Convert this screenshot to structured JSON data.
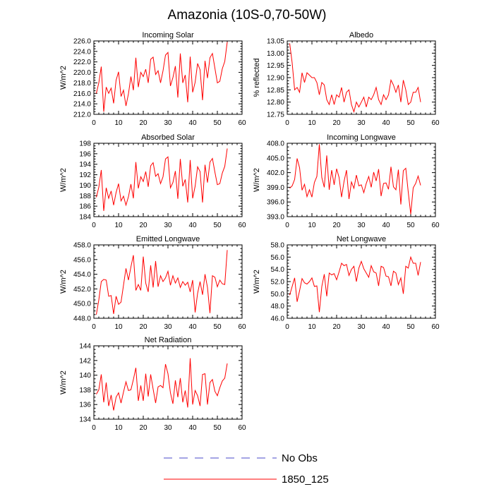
{
  "title": "Amazonia (10S-0,70-50W)",
  "legend": [
    {
      "label": "No Obs",
      "color": "#4a4ac8",
      "style": "dashed"
    },
    {
      "label": "1850_125",
      "color": "#ff0000",
      "style": "solid"
    }
  ],
  "chart_data": [
    {
      "type": "line",
      "title": "Incoming Solar",
      "ylabel": "W/m^2",
      "xlim": [
        0,
        60
      ],
      "xticks": [
        0,
        10,
        20,
        30,
        40,
        50,
        60
      ],
      "ylim": [
        212,
        226
      ],
      "yticks": [
        212,
        214,
        216,
        218,
        220,
        222,
        224,
        226
      ],
      "ydecimals": 1,
      "series": [
        {
          "name": "1850_125",
          "color": "#ff0000",
          "x": [
            1,
            2,
            3,
            4,
            5,
            6,
            7,
            8,
            9,
            10,
            11,
            12,
            13,
            14,
            15,
            16,
            17,
            18,
            19,
            20,
            21,
            22,
            23,
            24,
            25,
            26,
            27,
            28,
            29,
            30,
            31,
            32,
            33,
            34,
            35,
            36,
            37,
            38,
            39,
            40,
            41,
            42,
            43,
            44,
            45,
            46,
            47,
            48,
            49,
            50,
            51,
            52,
            53,
            54
          ],
          "values": [
            216.0,
            218.0,
            221.1,
            212.5,
            217.2,
            216.0,
            217.0,
            214.1,
            218.5,
            220.1,
            215.4,
            216.6,
            213.6,
            215.9,
            219.2,
            216.6,
            222.8,
            217.2,
            220.0,
            219.2,
            220.6,
            218.0,
            222.5,
            222.9,
            219.6,
            220.3,
            218.0,
            220.3,
            223.3,
            223.8,
            217.4,
            219.0,
            221.2,
            215.2,
            223.6,
            218.0,
            219.5,
            214.3,
            223.0,
            216.2,
            218.1,
            221.7,
            220.5,
            214.7,
            222.2,
            218.9,
            222.8,
            223.6,
            220.8,
            218.0,
            218.3,
            220.7,
            222.1,
            225.8
          ]
        }
      ]
    },
    {
      "type": "line",
      "title": "Albedo",
      "ylabel": "% reflected",
      "xlim": [
        0,
        60
      ],
      "xticks": [
        0,
        10,
        20,
        30,
        40,
        50,
        60
      ],
      "ylim": [
        12.75,
        13.05
      ],
      "yticks": [
        12.75,
        12.8,
        12.85,
        12.9,
        12.95,
        13.0,
        13.05
      ],
      "ydecimals": 2,
      "series": [
        {
          "name": "1850_125",
          "color": "#ff0000",
          "x": [
            1,
            2,
            3,
            4,
            5,
            6,
            7,
            8,
            9,
            10,
            11,
            12,
            13,
            14,
            15,
            16,
            17,
            18,
            19,
            20,
            21,
            22,
            23,
            24,
            25,
            26,
            27,
            28,
            29,
            30,
            31,
            32,
            33,
            34,
            35,
            36,
            37,
            38,
            39,
            40,
            41,
            42,
            43,
            44,
            45,
            46,
            47,
            48,
            49,
            50,
            51,
            52,
            53,
            54
          ],
          "values": [
            13.04,
            12.96,
            12.85,
            12.86,
            12.84,
            12.92,
            12.88,
            12.92,
            12.91,
            12.9,
            12.9,
            12.88,
            12.83,
            12.88,
            12.87,
            12.81,
            12.79,
            12.83,
            12.79,
            12.83,
            12.82,
            12.86,
            12.8,
            12.84,
            12.85,
            12.79,
            12.76,
            12.8,
            12.78,
            12.8,
            12.82,
            12.78,
            12.82,
            12.81,
            12.83,
            12.86,
            12.81,
            12.79,
            12.83,
            12.81,
            12.83,
            12.89,
            12.87,
            12.84,
            12.87,
            12.8,
            12.89,
            12.85,
            12.79,
            12.8,
            12.84,
            12.84,
            12.86,
            12.8
          ]
        }
      ]
    },
    {
      "type": "line",
      "title": "Absorbed Solar",
      "ylabel": "W/m^2",
      "xlim": [
        0,
        60
      ],
      "xticks": [
        0,
        10,
        20,
        30,
        40,
        50,
        60
      ],
      "ylim": [
        184,
        198
      ],
      "yticks": [
        184,
        186,
        188,
        190,
        192,
        194,
        196,
        198
      ],
      "ydecimals": 0,
      "series": [
        {
          "name": "1850_125",
          "color": "#ff0000",
          "x": [
            1,
            2,
            3,
            4,
            5,
            6,
            7,
            8,
            9,
            10,
            11,
            12,
            13,
            14,
            15,
            16,
            17,
            18,
            19,
            20,
            21,
            22,
            23,
            24,
            25,
            26,
            27,
            28,
            29,
            30,
            31,
            32,
            33,
            34,
            35,
            36,
            37,
            38,
            39,
            40,
            41,
            42,
            43,
            44,
            45,
            46,
            47,
            48,
            49,
            50,
            51,
            52,
            53,
            54
          ],
          "values": [
            187.7,
            189.6,
            192.9,
            185.1,
            189.5,
            187.5,
            188.9,
            186.2,
            188.6,
            190.3,
            187.0,
            187.9,
            186.2,
            187.8,
            190.2,
            187.5,
            194.4,
            189.4,
            191.6,
            190.7,
            192.6,
            189.7,
            193.7,
            194.3,
            191.7,
            192.2,
            190.3,
            191.6,
            195.0,
            195.4,
            189.5,
            190.5,
            192.7,
            187.4,
            195.0,
            189.8,
            191.1,
            186.7,
            194.8,
            187.5,
            189.8,
            193.5,
            192.6,
            186.7,
            193.9,
            190.5,
            194.4,
            195.1,
            192.5,
            190.1,
            190.3,
            192.3,
            193.6,
            197.0
          ]
        }
      ]
    },
    {
      "type": "line",
      "title": "Incoming Longwave",
      "ylabel": "W/m^2",
      "xlim": [
        0,
        60
      ],
      "xticks": [
        0,
        10,
        20,
        30,
        40,
        50,
        60
      ],
      "ylim": [
        393,
        408
      ],
      "yticks": [
        393,
        396,
        399,
        402,
        405,
        408
      ],
      "ydecimals": 1,
      "series": [
        {
          "name": "1850_125",
          "color": "#ff0000",
          "x": [
            1,
            2,
            3,
            4,
            5,
            6,
            7,
            8,
            9,
            10,
            11,
            12,
            13,
            14,
            15,
            16,
            17,
            18,
            19,
            20,
            21,
            22,
            23,
            24,
            25,
            26,
            27,
            28,
            29,
            30,
            31,
            32,
            33,
            34,
            35,
            36,
            37,
            38,
            39,
            40,
            41,
            42,
            43,
            44,
            45,
            46,
            47,
            48,
            49,
            50,
            51,
            52,
            53,
            54
          ],
          "values": [
            398.8,
            399.3,
            400.6,
            404.9,
            403.0,
            398.4,
            399.6,
            397.1,
            398.5,
            397.0,
            400.0,
            401.2,
            407.8,
            401.0,
            399.0,
            405.5,
            398.5,
            402.5,
            399.5,
            402.8,
            401.0,
            397.0,
            400.2,
            402.5,
            396.6,
            400.1,
            398.8,
            401.5,
            399.3,
            399.5,
            397.9,
            399.8,
            401.2,
            399.0,
            402.1,
            400.3,
            402.7,
            397.2,
            399.8,
            399.9,
            398.6,
            403.2,
            399.1,
            398.5,
            402.6,
            395.5,
            402.4,
            402.9,
            398.0,
            393.5,
            398.9,
            399.8,
            401.3,
            399.4
          ]
        }
      ]
    },
    {
      "type": "line",
      "title": "Emitted Longwave",
      "ylabel": "W/m^2",
      "xlim": [
        0,
        60
      ],
      "xticks": [
        0,
        10,
        20,
        30,
        40,
        50,
        60
      ],
      "ylim": [
        448,
        458
      ],
      "yticks": [
        448,
        450,
        452,
        454,
        456,
        458
      ],
      "ydecimals": 1,
      "series": [
        {
          "name": "1850_125",
          "color": "#ff0000",
          "x": [
            1,
            2,
            3,
            4,
            5,
            6,
            7,
            8,
            9,
            10,
            11,
            12,
            13,
            14,
            15,
            16,
            17,
            18,
            19,
            20,
            21,
            22,
            23,
            24,
            25,
            26,
            27,
            28,
            29,
            30,
            31,
            32,
            33,
            34,
            35,
            36,
            37,
            38,
            39,
            40,
            41,
            42,
            43,
            44,
            45,
            46,
            47,
            48,
            49,
            50,
            51,
            52,
            53,
            54
          ],
          "values": [
            448.5,
            450.5,
            453.0,
            453.3,
            453.2,
            451.0,
            451.1,
            448.6,
            451.0,
            449.9,
            450.2,
            452.5,
            454.8,
            453.2,
            455.0,
            456.6,
            451.8,
            452.6,
            451.8,
            456.4,
            452.8,
            451.6,
            455.2,
            452.2,
            455.8,
            452.3,
            453.8,
            453.0,
            453.5,
            454.4,
            452.5,
            453.8,
            452.8,
            453.5,
            452.2,
            453.0,
            452.5,
            452.9,
            451.6,
            453.2,
            448.8,
            451.4,
            453.0,
            451.2,
            454.0,
            452.2,
            448.7,
            453.8,
            453.6,
            452.3,
            453.2,
            452.7,
            452.6,
            457.3
          ]
        }
      ]
    },
    {
      "type": "line",
      "title": "Net Longwave",
      "ylabel": "W/m^2",
      "xlim": [
        0,
        60
      ],
      "xticks": [
        0,
        10,
        20,
        30,
        40,
        50,
        60
      ],
      "ylim": [
        46,
        58
      ],
      "yticks": [
        46,
        48,
        50,
        52,
        54,
        56,
        58
      ],
      "ydecimals": 1,
      "series": [
        {
          "name": "1850_125",
          "color": "#ff0000",
          "x": [
            1,
            2,
            3,
            4,
            5,
            6,
            7,
            8,
            9,
            10,
            11,
            12,
            13,
            14,
            15,
            16,
            17,
            18,
            19,
            20,
            21,
            22,
            23,
            24,
            25,
            26,
            27,
            28,
            29,
            30,
            31,
            32,
            33,
            34,
            35,
            36,
            37,
            38,
            39,
            40,
            41,
            42,
            43,
            44,
            45,
            46,
            47,
            48,
            49,
            50,
            51,
            52,
            53,
            54
          ],
          "values": [
            49.8,
            51.2,
            52.6,
            48.7,
            50.5,
            52.5,
            51.8,
            51.6,
            52.0,
            52.6,
            51.2,
            51.3,
            47.0,
            51.2,
            53.2,
            49.6,
            53.4,
            53.1,
            53.3,
            52.3,
            53.6,
            55.0,
            54.6,
            54.8,
            53.0,
            54.0,
            54.5,
            52.0,
            54.2,
            55.3,
            54.1,
            53.4,
            52.7,
            54.6,
            53.6,
            53.4,
            51.3,
            54.5,
            54.3,
            52.9,
            52.8,
            51.3,
            53.7,
            53.4,
            51.5,
            52.6,
            50.0,
            54.5,
            54.2,
            56.0,
            55.0,
            55.0,
            53.0,
            55.2
          ]
        }
      ]
    },
    {
      "type": "line",
      "title": "Net Radiation",
      "ylabel": "W/m^2",
      "xlim": [
        0,
        60
      ],
      "xticks": [
        0,
        10,
        20,
        30,
        40,
        50,
        60
      ],
      "ylim": [
        134,
        144
      ],
      "yticks": [
        134,
        136,
        138,
        140,
        142,
        144
      ],
      "ydecimals": 0,
      "series": [
        {
          "name": "1850_125",
          "color": "#ff0000",
          "x": [
            1,
            2,
            3,
            4,
            5,
            6,
            7,
            8,
            9,
            10,
            11,
            12,
            13,
            14,
            15,
            16,
            17,
            18,
            19,
            20,
            21,
            22,
            23,
            24,
            25,
            26,
            27,
            28,
            29,
            30,
            31,
            32,
            33,
            34,
            35,
            36,
            37,
            38,
            39,
            40,
            41,
            42,
            43,
            44,
            45,
            46,
            47,
            48,
            49,
            50,
            51,
            52,
            53,
            54
          ],
          "values": [
            137.4,
            138.0,
            140.1,
            136.3,
            139.0,
            135.8,
            137.3,
            135.2,
            137.0,
            137.6,
            136.2,
            137.7,
            139.1,
            137.9,
            138.0,
            139.4,
            141.0,
            136.5,
            138.6,
            136.5,
            140.2,
            137.1,
            140.1,
            138.1,
            136.2,
            138.4,
            138.6,
            138.3,
            141.5,
            140.2,
            137.6,
            136.1,
            139.3,
            137.0,
            139.6,
            136.3,
            137.9,
            135.6,
            142.3,
            136.0,
            137.9,
            137.2,
            135.8,
            140.1,
            140.2,
            136.0,
            139.0,
            139.4,
            137.8,
            137.2,
            138.3,
            139.2,
            139.6,
            141.6
          ]
        }
      ]
    }
  ]
}
